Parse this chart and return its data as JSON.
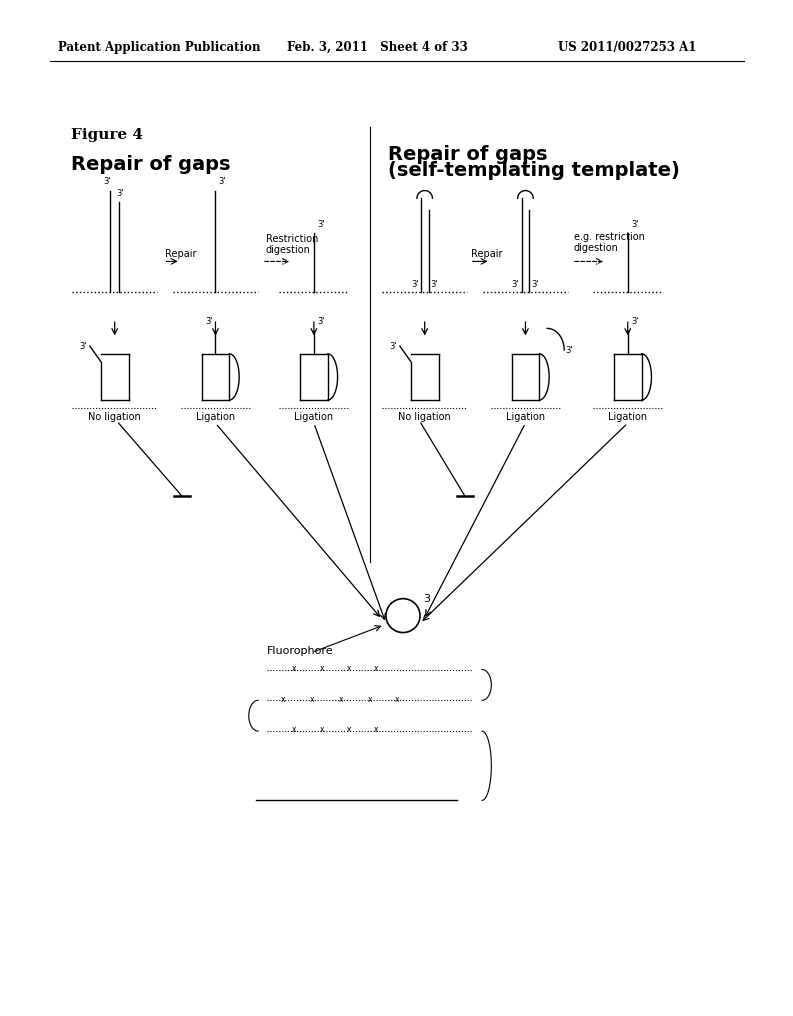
{
  "bg_color": "#ffffff",
  "text_color": "#000000",
  "header_left": "Patent Application Publication",
  "header_mid": "Feb. 3, 2011   Sheet 4 of 33",
  "header_right": "US 2011/0027253 A1",
  "figure_label": "Figure 4",
  "title_left": "Repair of gaps",
  "title_right_line1": "Repair of gaps",
  "title_right_line2": "(self-templating template)"
}
